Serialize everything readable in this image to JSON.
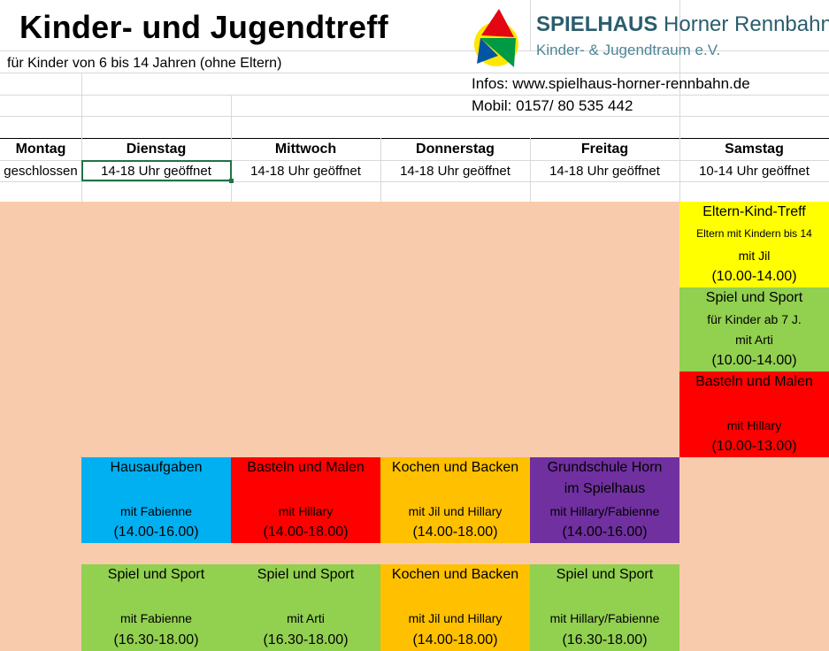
{
  "header": {
    "title": "Kinder- und Jugendtreff",
    "subtitle": "für Kinder von 6 bis 14 Jahren (ohne Eltern)",
    "infos": "Infos: www.spielhaus-horner-rennbahn.de",
    "mobil": "Mobil: 0157/ 80 535 442"
  },
  "logo": {
    "brand_bold": "SPIELHAUS",
    "brand_rest": "Horner Rennbahn",
    "tagline": "Kinder- & Jugendtraum e.V."
  },
  "days": [
    {
      "name": "Montag",
      "hours": "geschlossen"
    },
    {
      "name": "Dienstag",
      "hours": "14-18 Uhr geöffnet"
    },
    {
      "name": "Mittwoch",
      "hours": "14-18 Uhr geöffnet"
    },
    {
      "name": "Donnerstag",
      "hours": "14-18 Uhr geöffnet"
    },
    {
      "name": "Freitag",
      "hours": "14-18 Uhr geöffnet"
    },
    {
      "name": "Samstag",
      "hours": "10-14 Uhr geöffnet"
    }
  ],
  "colors": {
    "peach": "#f8cbad",
    "yellow": "#ffff00",
    "green": "#92d050",
    "red": "#ff0000",
    "blue": "#00b0f0",
    "orange": "#ffc000",
    "purple": "#7030a0"
  },
  "saturday": [
    {
      "l1": "Eltern-Kind-Treff",
      "l2": "Eltern mit Kindern bis 14",
      "l3": "mit Jil",
      "l4": "(10.00-14.00)"
    },
    {
      "l1": "Spiel und Sport",
      "l2": "für Kinder ab 7 J.",
      "l3": "mit Arti",
      "l4": "(10.00-14.00)"
    },
    {
      "l1": "Basteln und Malen",
      "l2": "",
      "l3": "mit Hillary",
      "l4": "(10.00-13.00)"
    }
  ],
  "row1": [
    {
      "l1": "Hausaufgaben",
      "l2": "",
      "l3": "mit Fabienne",
      "l4": "(14.00-16.00)"
    },
    {
      "l1": "Basteln und Malen",
      "l2": "",
      "l3": "mit Hillary",
      "l4": "(14.00-18.00)"
    },
    {
      "l1": "Kochen und Backen",
      "l2": "",
      "l3": "mit Jil und Hillary",
      "l4": "(14.00-18.00)"
    },
    {
      "l1": "Grundschule Horn",
      "l2": "im Spielhaus",
      "l3": "mit Hillary/Fabienne",
      "l4": "(14.00-16.00)"
    }
  ],
  "row2": [
    {
      "l1": "Spiel und Sport",
      "l2": "",
      "l3": "mit Fabienne",
      "l4": "(16.30-18.00)"
    },
    {
      "l1": "Spiel und Sport",
      "l2": "",
      "l3": "mit Arti",
      "l4": "(16.30-18.00)"
    },
    {
      "l1": "Kochen und Backen",
      "l2": "",
      "l3": "mit Jil und Hillary",
      "l4": "(14.00-18.00)"
    },
    {
      "l1": "Spiel und Sport",
      "l2": "",
      "l3": "mit Hillary/Fabienne",
      "l4": "(16.30-18.00)"
    }
  ]
}
